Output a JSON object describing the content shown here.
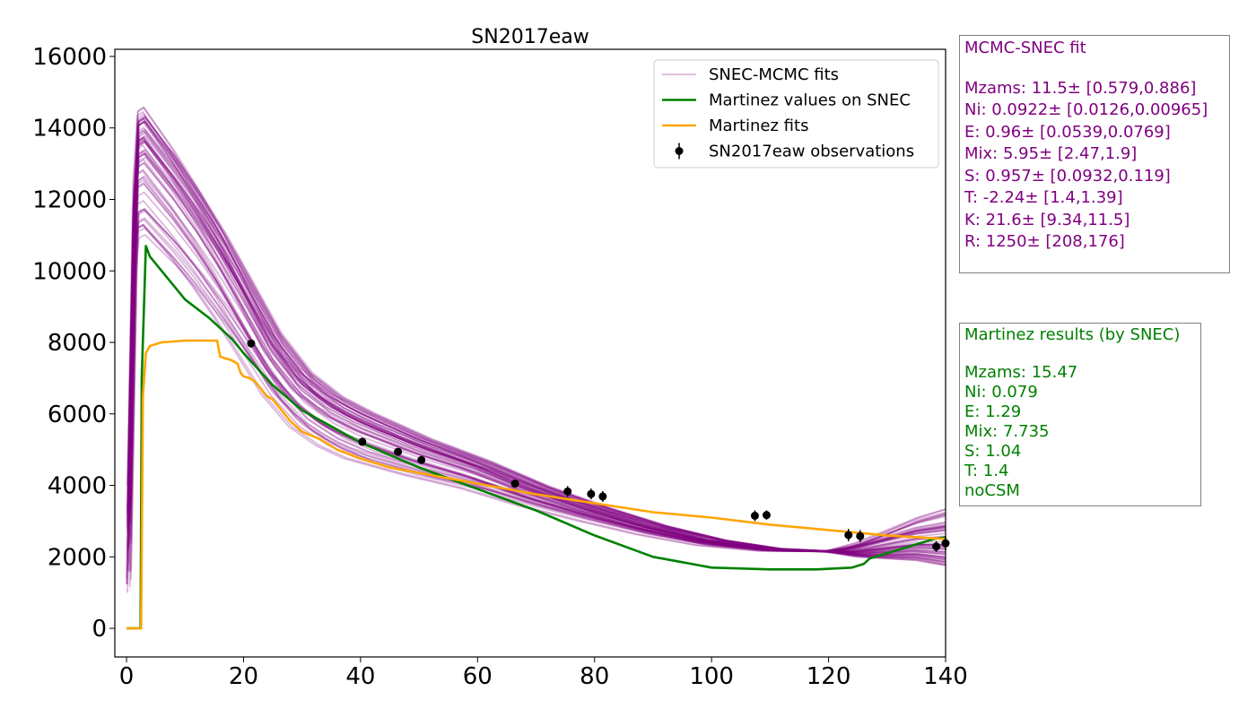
{
  "chart_data": {
    "type": "line",
    "title": "SN2017eaw",
    "xlabel": "",
    "ylabel": "",
    "xlim": [
      -2,
      140
    ],
    "ylim": [
      -800,
      16200
    ],
    "xticks": [
      0,
      20,
      40,
      60,
      80,
      100,
      120,
      140
    ],
    "yticks": [
      0,
      2000,
      4000,
      6000,
      8000,
      10000,
      12000,
      14000,
      16000
    ],
    "grid": false,
    "legend_position": "top-right",
    "legend": [
      {
        "label": "SNEC-MCMC fits",
        "style": "line",
        "color": "#800080"
      },
      {
        "label": "Martinez values on SNEC",
        "style": "line",
        "color": "#008000"
      },
      {
        "label": "Martinez fits",
        "style": "line",
        "color": "#FFA500"
      },
      {
        "label": "SN2017eaw observations",
        "style": "errorbar",
        "color": "#000000"
      }
    ],
    "series": [
      {
        "name": "SNEC-MCMC fits",
        "color": "#800080",
        "opacity": 0.28,
        "count": 60,
        "peak_range": [
          11000,
          15300
        ],
        "end_range": [
          1900,
          3550
        ],
        "x": [
          0,
          1,
          2,
          3,
          5,
          8,
          12,
          16,
          20,
          25,
          30,
          35,
          40,
          50,
          60,
          70,
          80,
          90,
          100,
          110,
          120,
          125,
          130,
          135,
          140
        ],
        "y": [
          2500,
          11000,
          12700,
          12800,
          12400,
          11800,
          10900,
          9900,
          8800,
          7400,
          6400,
          5800,
          5400,
          4800,
          4300,
          3700,
          3200,
          2750,
          2400,
          2200,
          2150,
          2200,
          2350,
          2500,
          2550
        ]
      },
      {
        "name": "Martinez values on SNEC",
        "color": "#008000",
        "x": [
          0,
          2.4,
          2.6,
          3.3,
          4,
          6,
          8,
          10,
          14,
          18,
          20,
          25,
          30,
          40,
          50,
          60,
          70,
          80,
          90,
          100,
          110,
          118,
          124,
          126,
          127,
          130,
          133,
          136,
          138,
          140
        ],
        "y": [
          0,
          0,
          7000,
          10700,
          10400,
          10000,
          9600,
          9200,
          8700,
          8100,
          7700,
          6800,
          6100,
          5200,
          4500,
          3900,
          3300,
          2600,
          2000,
          1700,
          1650,
          1650,
          1700,
          1800,
          1950,
          2100,
          2250,
          2400,
          2500,
          2550
        ]
      },
      {
        "name": "Martinez fits",
        "color": "#FFA500",
        "x": [
          0,
          2.5,
          2.8,
          3.3,
          4,
          6,
          10,
          15.5,
          16,
          17,
          18,
          19,
          19.5,
          20,
          21,
          22,
          23,
          24,
          25,
          27,
          28,
          30,
          33,
          36,
          40,
          45,
          50,
          60,
          70,
          80,
          90,
          100,
          110,
          120,
          130,
          140
        ],
        "y": [
          0,
          0,
          6500,
          7700,
          7900,
          8000,
          8050,
          8050,
          7600,
          7550,
          7500,
          7400,
          7150,
          7050,
          7000,
          6900,
          6700,
          6500,
          6400,
          6000,
          5800,
          5500,
          5300,
          5000,
          4750,
          4500,
          4350,
          4050,
          3750,
          3500,
          3250,
          3100,
          2900,
          2750,
          2600,
          2500
        ]
      }
    ],
    "observations": {
      "name": "SN2017eaw observations",
      "color": "#000000",
      "points": [
        {
          "x": 21.3,
          "y": 7970,
          "err": 60
        },
        {
          "x": 40.3,
          "y": 5220,
          "err": 80
        },
        {
          "x": 46.4,
          "y": 4940,
          "err": 80
        },
        {
          "x": 50.4,
          "y": 4710,
          "err": 80
        },
        {
          "x": 66.4,
          "y": 4050,
          "err": 90
        },
        {
          "x": 75.4,
          "y": 3830,
          "err": 150
        },
        {
          "x": 79.4,
          "y": 3760,
          "err": 150
        },
        {
          "x": 81.4,
          "y": 3690,
          "err": 150
        },
        {
          "x": 107.4,
          "y": 3150,
          "err": 150
        },
        {
          "x": 109.4,
          "y": 3170,
          "err": 130
        },
        {
          "x": 123.4,
          "y": 2610,
          "err": 170
        },
        {
          "x": 125.4,
          "y": 2580,
          "err": 170
        },
        {
          "x": 138.4,
          "y": 2290,
          "err": 150
        },
        {
          "x": 140,
          "y": 2380,
          "err": 190
        }
      ]
    }
  },
  "mcmc_box": {
    "title": "MCMC-SNEC fit",
    "lines": [
      "Mzams: 11.5± [0.579,0.886]",
      "Ni: 0.0922± [0.0126,0.00965]",
      "E: 0.96± [0.0539,0.0769]",
      "Mix: 5.95± [2.47,1.9]",
      "S: 0.957± [0.0932,0.119]",
      "T: -2.24± [1.4,1.39]",
      "K: 21.6± [9.34,11.5]",
      "R: 1250± [208,176]"
    ],
    "color": "#800080"
  },
  "martinez_box": {
    "title": "Martinez results (by SNEC)",
    "lines": [
      "Mzams: 15.47",
      "Ni: 0.079",
      "E: 1.29",
      "Mix: 7.735",
      "S: 1.04",
      "T: 1.4",
      "noCSM"
    ],
    "color": "#008000"
  }
}
